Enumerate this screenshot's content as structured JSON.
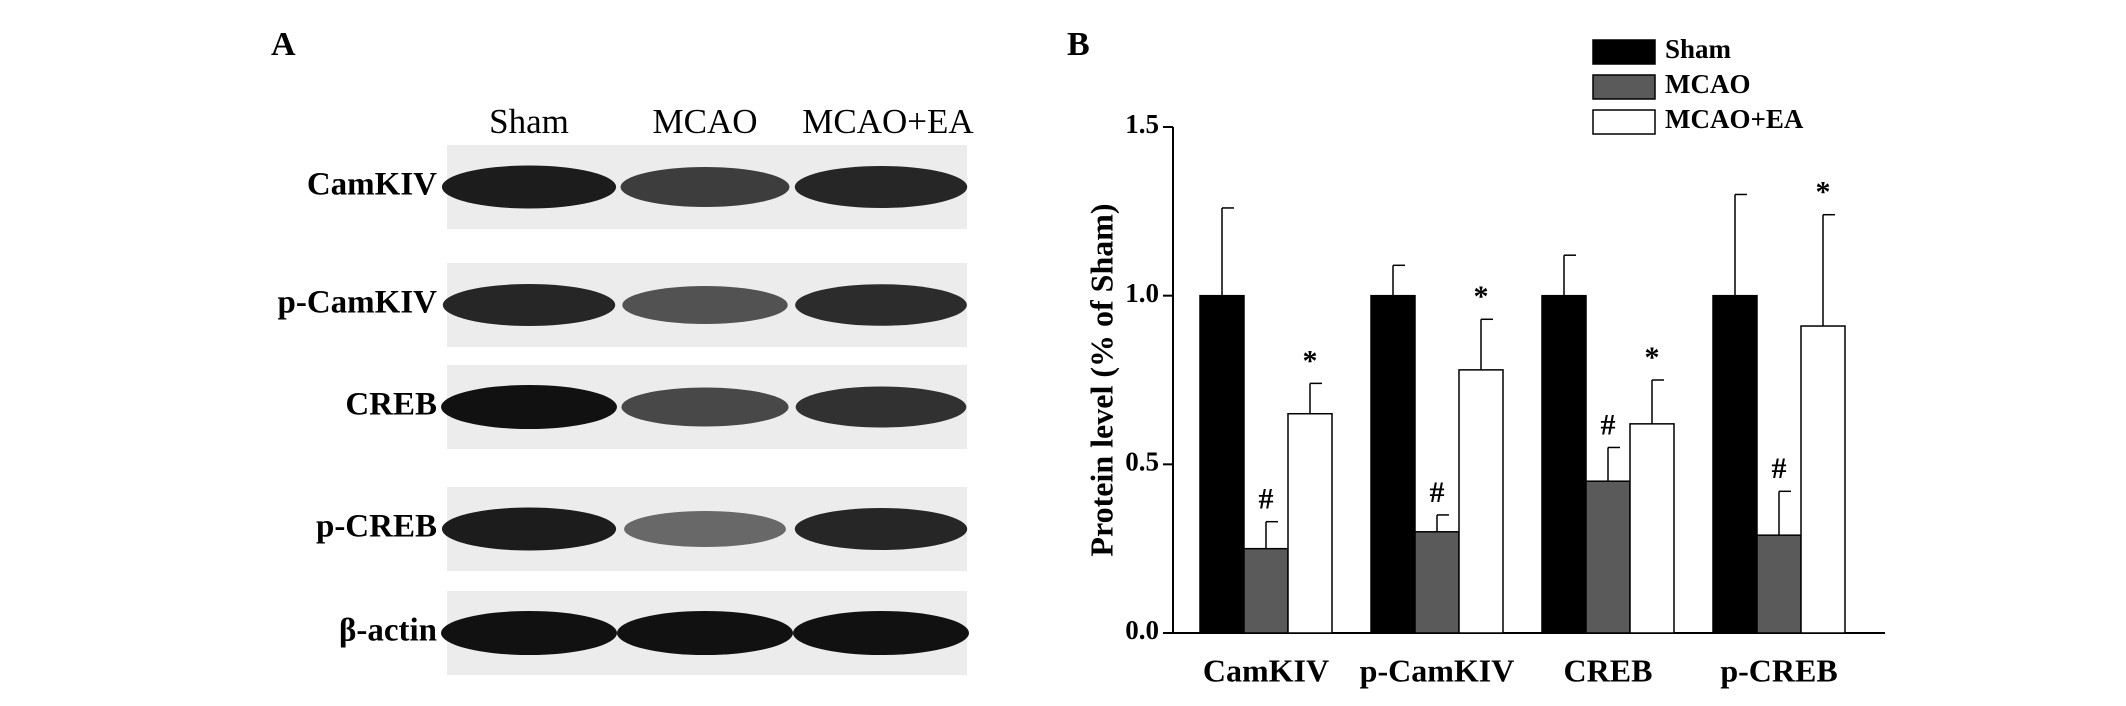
{
  "panel_a": {
    "label": "A",
    "lanes": [
      "Sham",
      "MCAO",
      "MCAO+EA"
    ],
    "proteins": [
      "CamKIV",
      "p-CamKIV",
      "CREB",
      "p-CREB",
      "β-actin"
    ]
  },
  "chart_data": {
    "type": "bar",
    "panel_label": "B",
    "y_label": "Protein level (% of Sham)",
    "categories": [
      "CamKIV",
      "p-CamKIV",
      "CREB",
      "p-CREB"
    ],
    "series": [
      {
        "name": "Sham",
        "color": "#000000",
        "values": [
          1.0,
          1.0,
          1.0,
          1.0
        ],
        "errors": [
          0.26,
          0.09,
          0.12,
          0.3
        ]
      },
      {
        "name": "MCAO",
        "color": "#5a5a5a",
        "values": [
          0.25,
          0.3,
          0.45,
          0.29
        ],
        "errors": [
          0.08,
          0.05,
          0.1,
          0.13
        ],
        "significance": [
          "#",
          "#",
          "#",
          "#"
        ]
      },
      {
        "name": "MCAO+EA",
        "color": "#ffffff",
        "values": [
          0.65,
          0.78,
          0.62,
          0.91
        ],
        "errors": [
          0.09,
          0.15,
          0.13,
          0.33
        ],
        "significance": [
          "*",
          "*",
          "*",
          "*"
        ]
      }
    ],
    "ylim": [
      0,
      1.5
    ],
    "yticks": [
      {
        "value": 0,
        "label": "0.0"
      },
      0.5,
      {
        "value": 1,
        "label": "1.0"
      },
      1.5
    ],
    "legend": "top-right"
  }
}
